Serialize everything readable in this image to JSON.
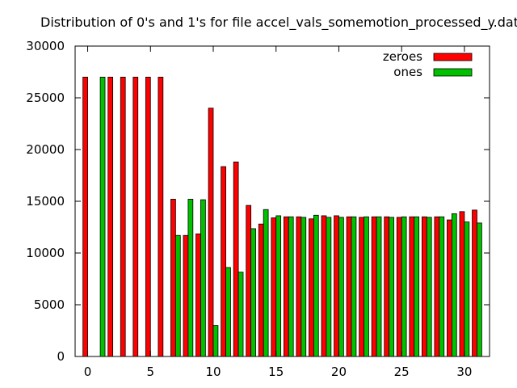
{
  "chart_data": {
    "type": "bar",
    "title": "Distribution of 0's and 1's for file accel_vals_somemotion_processed_y.dat",
    "xlabel": "",
    "ylabel": "",
    "xlim": [
      -1,
      32
    ],
    "ylim": [
      0,
      30000
    ],
    "xticks": [
      0,
      5,
      10,
      15,
      20,
      25,
      30
    ],
    "yticks": [
      0,
      5000,
      10000,
      15000,
      20000,
      25000,
      30000
    ],
    "grid": false,
    "legend_position": "top-right",
    "x": [
      0,
      1,
      2,
      3,
      4,
      5,
      6,
      7,
      8,
      9,
      10,
      11,
      12,
      13,
      14,
      15,
      16,
      17,
      18,
      19,
      20,
      21,
      22,
      23,
      24,
      25,
      26,
      27,
      28,
      29,
      30,
      31
    ],
    "series": [
      {
        "name": "zeroes",
        "color": "#ff0000",
        "values": [
          27000,
          0,
          27000,
          27000,
          27000,
          27000,
          27000,
          15200,
          11700,
          11850,
          24000,
          18350,
          18800,
          14600,
          12800,
          13400,
          13500,
          13500,
          13300,
          13600,
          13600,
          13500,
          13450,
          13500,
          13500,
          13450,
          13500,
          13500,
          13500,
          13200,
          14000,
          14150
        ]
      },
      {
        "name": "ones",
        "color": "#00c000",
        "values": [
          0,
          27000,
          0,
          0,
          0,
          0,
          0,
          11700,
          15200,
          15150,
          3000,
          8600,
          8150,
          12350,
          14200,
          13600,
          13500,
          13450,
          13650,
          13450,
          13450,
          13500,
          13500,
          13500,
          13450,
          13500,
          13500,
          13450,
          13500,
          13800,
          13000,
          12900
        ]
      }
    ]
  }
}
